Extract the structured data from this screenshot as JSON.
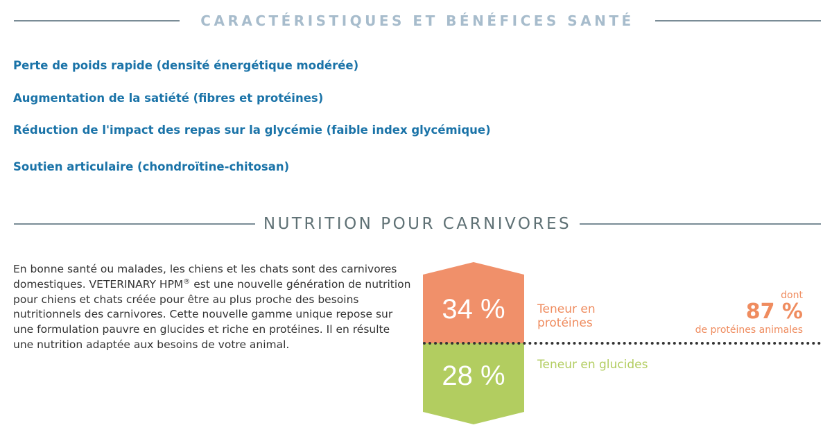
{
  "sections": {
    "benefits_title": "CARACTÉRISTIQUES ET BÉNÉFICES SANTÉ",
    "nutrition_title": "NUTRITION POUR CARNIVORES"
  },
  "benefits": [
    "Perte de poids rapide (densité énergétique modérée)",
    "Augmentation de la satiété (fibres et protéines)",
    "Réduction de l'impact des repas sur la glycémie (faible index glycémique)",
    "Soutien articulaire (chondroïtine-chitosan)"
  ],
  "intro": {
    "part1": "En bonne santé ou malades, les chiens et les chats sont des carnivores domestiques. VETERINARY HPM",
    "registered": "®",
    "part2": " est une nouvelle génération de nutrition pour chiens et chats créée pour être au plus proche des besoins nutritionnels des carnivores. Cette nouvelle gamme unique repose sur une formulation pauvre en glucides et riche en protéines. Il en résulte une nutrition adaptée aux besoins de votre animal."
  },
  "nutrients": {
    "protein": {
      "value": "34 %",
      "label_line1": "Teneur en",
      "label_line2": "protéines",
      "color": "#f0906a"
    },
    "carbs": {
      "value": "28 %",
      "label": "Teneur en glucides",
      "color": "#b2cd60"
    },
    "animal_protein": {
      "prefix": "dont",
      "value": "87 %",
      "suffix": "de protéines animales",
      "color": "#ef8c5f"
    }
  },
  "colors": {
    "benefit_text": "#1a73a8",
    "heading_light": "#a7bccc",
    "heading_dark": "#5f7175"
  }
}
